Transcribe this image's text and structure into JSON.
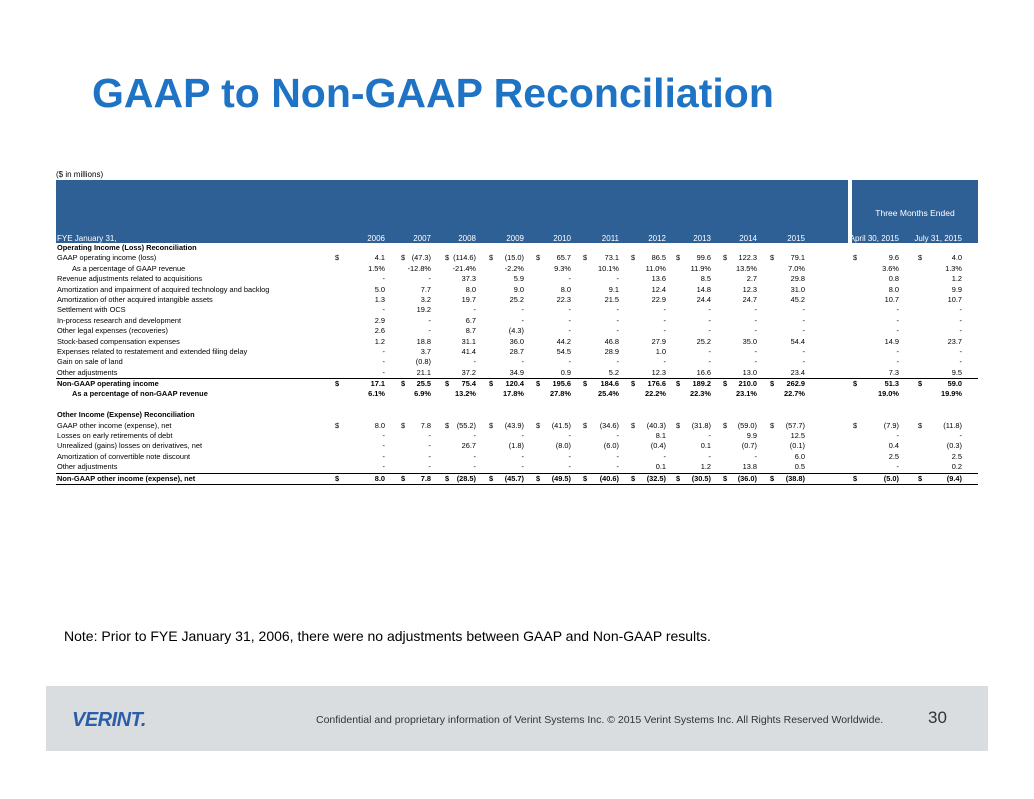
{
  "title": "GAAP to Non-GAAP Reconciliation",
  "units": "($ in millions)",
  "header": {
    "fye_label": "FYE January 31,",
    "years": [
      "2006",
      "2007",
      "2008",
      "2009",
      "2010",
      "2011",
      "2012",
      "2013",
      "2014",
      "2015"
    ],
    "quarter_title": "Three Months Ended",
    "quarters": [
      "April 30, 2015",
      "July 31, 2015"
    ]
  },
  "rows": [
    {
      "type": "section",
      "label": "Operating Income (Loss) Reconciliation"
    },
    {
      "label": "GAAP operating income (loss)",
      "dollar": true,
      "values": [
        "4.1",
        "(47.3)",
        "(114.6)",
        "(15.0)",
        "65.7",
        "73.1",
        "86.5",
        "99.6",
        "122.3",
        "79.1",
        "9.6",
        "4.0"
      ]
    },
    {
      "label": "As a percentage of GAAP revenue",
      "indent": true,
      "values": [
        "1.5%",
        "-12.8%",
        "-21.4%",
        "-2.2%",
        "9.3%",
        "10.1%",
        "11.0%",
        "11.9%",
        "13.5%",
        "7.0%",
        "3.6%",
        "1.3%"
      ]
    },
    {
      "label": "Revenue adjustments related to acquisitions",
      "values": [
        "-",
        "-",
        "37.3",
        "5.9",
        "-",
        "-",
        "13.6",
        "8.5",
        "2.7",
        "29.8",
        "0.8",
        "1.2"
      ]
    },
    {
      "label": "Amortization and impairment of acquired technology and backlog",
      "values": [
        "5.0",
        "7.7",
        "8.0",
        "9.0",
        "8.0",
        "9.1",
        "12.4",
        "14.8",
        "12.3",
        "31.0",
        "8.0",
        "9.9"
      ]
    },
    {
      "label": "Amortization of other acquired intangible assets",
      "values": [
        "1.3",
        "3.2",
        "19.7",
        "25.2",
        "22.3",
        "21.5",
        "22.9",
        "24.4",
        "24.7",
        "45.2",
        "10.7",
        "10.7"
      ]
    },
    {
      "label": "Settlement with OCS",
      "values": [
        "-",
        "19.2",
        "-",
        "-",
        "-",
        "-",
        "-",
        "-",
        "-",
        "-",
        "-",
        "-"
      ]
    },
    {
      "label": "In-process research and development",
      "values": [
        "2.9",
        "-",
        "6.7",
        "-",
        "-",
        "-",
        "-",
        "-",
        "-",
        "-",
        "-",
        "-"
      ]
    },
    {
      "label": "Other legal expenses (recoveries)",
      "values": [
        "2.6",
        "-",
        "8.7",
        "(4.3)",
        "-",
        "-",
        "-",
        "-",
        "-",
        "-",
        "-",
        "-"
      ]
    },
    {
      "label": "Stock-based compensation expenses",
      "values": [
        "1.2",
        "18.8",
        "31.1",
        "36.0",
        "44.2",
        "46.8",
        "27.9",
        "25.2",
        "35.0",
        "54.4",
        "14.9",
        "23.7"
      ]
    },
    {
      "label": "Expenses related to restatement and extended filing delay",
      "values": [
        "-",
        "3.7",
        "41.4",
        "28.7",
        "54.5",
        "28.9",
        "1.0",
        "-",
        "-",
        "-",
        "-",
        "-"
      ]
    },
    {
      "label": "Gain on sale of land",
      "values": [
        "-",
        "(0.8)",
        "-",
        "-",
        "-",
        "-",
        "-",
        "-",
        "-",
        "-",
        "-",
        "-"
      ]
    },
    {
      "label": "Other adjustments",
      "values": [
        "-",
        "21.1",
        "37.2",
        "34.9",
        "0.9",
        "5.2",
        "12.3",
        "16.6",
        "13.0",
        "23.4",
        "7.3",
        "9.5"
      ]
    },
    {
      "label": "Non-GAAP operating income",
      "bold": true,
      "tline": true,
      "dollar": true,
      "values": [
        "17.1",
        "25.5",
        "75.4",
        "120.4",
        "195.6",
        "184.6",
        "176.6",
        "189.2",
        "210.0",
        "262.9",
        "51.3",
        "59.0"
      ]
    },
    {
      "label": "As a percentage of non-GAAP revenue",
      "bold": true,
      "indent": true,
      "values": [
        "6.1%",
        "6.9%",
        "13.2%",
        "17.8%",
        "27.8%",
        "25.4%",
        "22.2%",
        "22.3%",
        "23.1%",
        "22.7%",
        "19.0%",
        "19.9%"
      ]
    },
    {
      "type": "spacer"
    },
    {
      "type": "section",
      "label": "Other Income (Expense) Reconciliation"
    },
    {
      "label": "GAAP other income (expense), net",
      "dollar": true,
      "values": [
        "8.0",
        "7.8",
        "(55.2)",
        "(43.9)",
        "(41.5)",
        "(34.6)",
        "(40.3)",
        "(31.8)",
        "(59.0)",
        "(57.7)",
        "(7.9)",
        "(11.8)"
      ]
    },
    {
      "label": "Losses on early retirements of debt",
      "values": [
        "-",
        "-",
        "-",
        "-",
        "-",
        "-",
        "8.1",
        "-",
        "9.9",
        "12.5",
        "-",
        "-"
      ]
    },
    {
      "label": "Unrealized (gains) losses on derivatives, net",
      "values": [
        "-",
        "-",
        "26.7",
        "(1.8)",
        "(8.0)",
        "(6.0)",
        "(0.4)",
        "0.1",
        "(0.7)",
        "(0.1)",
        "0.4",
        "(0.3)"
      ]
    },
    {
      "label": "Amortization of convertible note discount",
      "values": [
        "-",
        "-",
        "-",
        "-",
        "-",
        "-",
        "-",
        "-",
        "-",
        "6.0",
        "2.5",
        "2.5"
      ]
    },
    {
      "label": "Other adjustments",
      "values": [
        "-",
        "-",
        "-",
        "-",
        "-",
        "-",
        "0.1",
        "1.2",
        "13.8",
        "0.5",
        "-",
        "0.2"
      ]
    },
    {
      "label": "Non-GAAP other income (expense), net",
      "bold": true,
      "tline": true,
      "bline": true,
      "dollar": true,
      "values": [
        "8.0",
        "7.8",
        "(28.5)",
        "(45.7)",
        "(49.5)",
        "(40.6)",
        "(32.5)",
        "(30.5)",
        "(36.0)",
        "(38.8)",
        "(5.0)",
        "(9.4)"
      ]
    }
  ],
  "dollar_sign": "$",
  "note": "Note:  Prior to FYE January 31, 2006, there were no adjustments between GAAP and Non-GAAP results.",
  "footer": {
    "logo_text": "VERINT.",
    "confidential": "Confidential and proprietary information of Verint Systems Inc.  © 2015 Verint Systems Inc. All Rights Reserved Worldwide.",
    "page_number": "30"
  },
  "colors": {
    "title": "#1f73c4",
    "header_band": "#2e5f95",
    "footer_band": "#d9dde0",
    "logo": "#2a5ea8"
  }
}
